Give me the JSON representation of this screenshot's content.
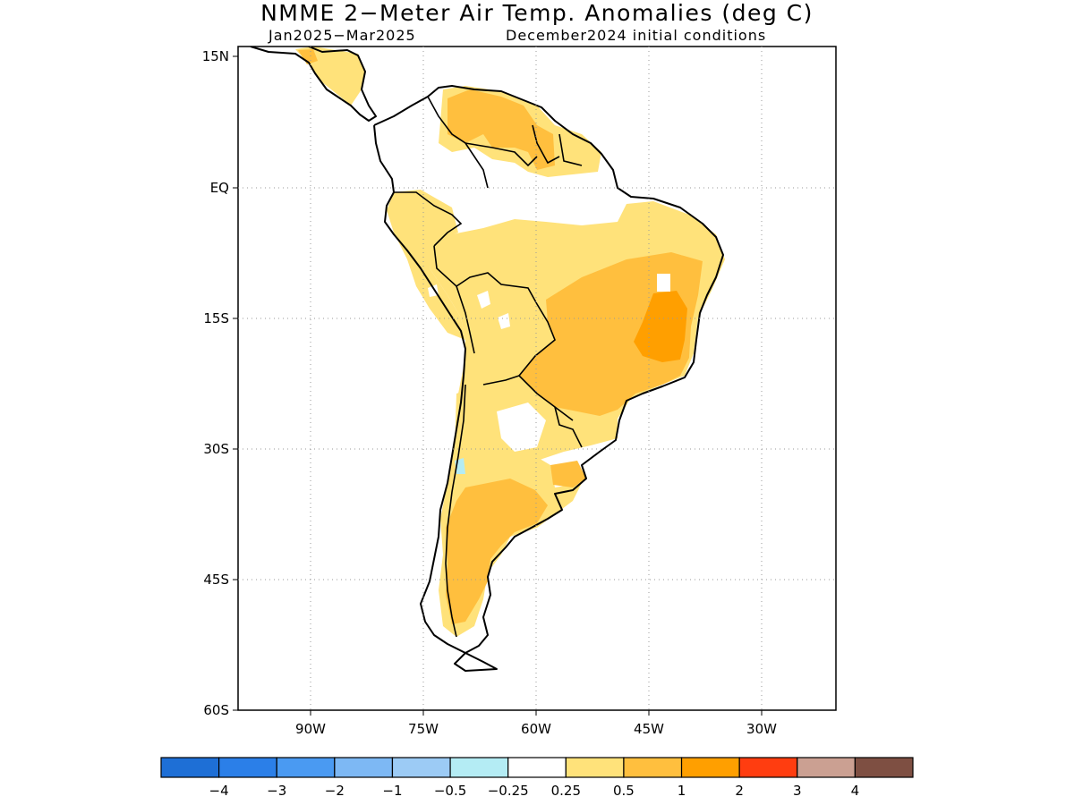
{
  "title": "NMME 2−Meter Air Temp. Anomalies (deg C)",
  "period": "Jan2025−Mar2025",
  "initial_conditions": "December2024 initial conditions",
  "map": {
    "region": "South America",
    "lon_ticks": [
      "90W",
      "75W",
      "60W",
      "45W",
      "30W"
    ],
    "lat_ticks": [
      "15N",
      "EQ",
      "15S",
      "30S",
      "45S",
      "60S"
    ],
    "grid": "dotted"
  },
  "colorbar": {
    "labels": [
      "−4",
      "−3",
      "−2",
      "−1",
      "−0.5",
      "−0.25",
      "0.25",
      "0.5",
      "1",
      "2",
      "3",
      "4"
    ],
    "colors": [
      "#1e6fd6",
      "#2b7fe8",
      "#4a9af2",
      "#7db8f4",
      "#9ccbf5",
      "#b4ecf4",
      "#ffffff",
      "#ffe27a",
      "#ffbf3e",
      "#ff9f00",
      "#ff3d10",
      "#cba092",
      "#7e4f42"
    ]
  }
}
